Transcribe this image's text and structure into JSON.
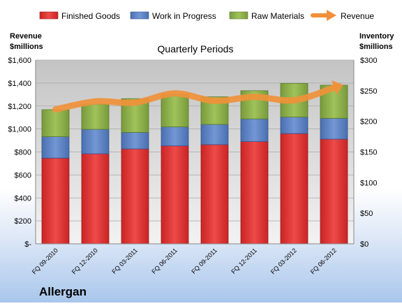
{
  "company": "Allergan",
  "chart_data": {
    "type": "bar",
    "stacked": true,
    "title": "Quarterly Periods",
    "categories": [
      "FQ 09-2010",
      "FQ 12-2010",
      "FQ 03-2011",
      "FQ 06-2011",
      "FQ 09-2011",
      "FQ 12-2011",
      "FQ 03-2012",
      "FQ 06-2012"
    ],
    "series": [
      {
        "name": "Finished Goods",
        "axis": "right",
        "color": "#e03a3a",
        "values": [
          140,
          147,
          155,
          160,
          162,
          167,
          180,
          171
        ]
      },
      {
        "name": "Work in Progress",
        "axis": "right",
        "color": "#5b82c4",
        "values": [
          35,
          40,
          27,
          31,
          33,
          37,
          27,
          34
        ]
      },
      {
        "name": "Raw Materials",
        "axis": "right",
        "color": "#8cb04a",
        "values": [
          44,
          41,
          55,
          53,
          45,
          46,
          55,
          54
        ]
      }
    ],
    "line_series": {
      "name": "Revenue",
      "axis": "left",
      "color": "#f0913a",
      "values": [
        1170,
        1240,
        1230,
        1310,
        1245,
        1280,
        1250,
        1360
      ]
    },
    "left_axis": {
      "label_line1": "Revenue",
      "label_line2": "$millions",
      "ylim": [
        0,
        1600
      ],
      "ticks": [
        "$-",
        "$200",
        "$400",
        "$600",
        "$800",
        "$1,000",
        "$1,200",
        "$1,400",
        "$1,600"
      ]
    },
    "right_axis": {
      "label_line1": "Inventory",
      "label_line2": "$millions",
      "ylim": [
        0,
        300
      ],
      "ticks": [
        "$0",
        "$50",
        "$100",
        "$150",
        "$200",
        "$250",
        "$300"
      ]
    },
    "legend_position": "top",
    "grid": true
  }
}
